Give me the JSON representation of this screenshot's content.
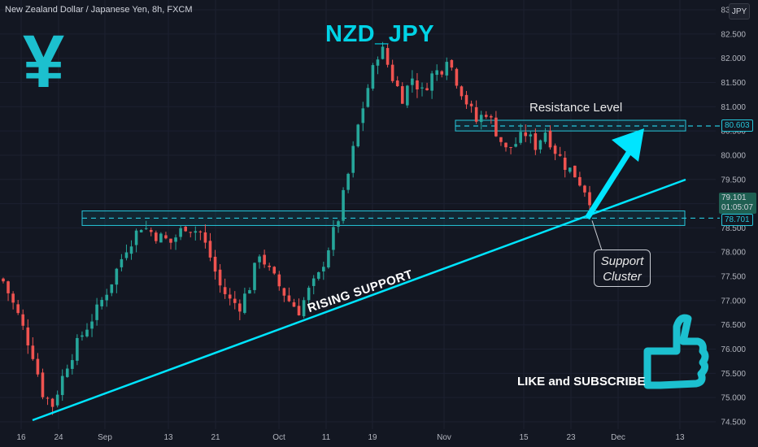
{
  "header": {
    "symbol_title": "New Zealand Dollar / Japanese Yen, 8h, FXCM",
    "currency_badge": "JPY"
  },
  "overlay": {
    "main_title": "NZD_JPY",
    "yen_glyph": "¥",
    "resistance_label": "Resistance Level",
    "support_label_line1": "Support",
    "support_label_line2": "Cluster",
    "rising_support_label": "RISING SUPPORT",
    "like_label": "LIKE and SUBSCRIBE"
  },
  "price_labels": {
    "resistance_value": "80.603",
    "last_price": "79.101",
    "countdown": "01:05:07",
    "support_value": "78.701"
  },
  "colors": {
    "background": "#131722",
    "bull": "#26a69a",
    "bear": "#ef5350",
    "accent": "#00e5ff",
    "grid": "#1e222d"
  },
  "icons": [
    "yen-symbol-icon",
    "thumbs-up-icon",
    "upward-arrow-icon"
  ],
  "chart_data": {
    "type": "candlestick",
    "title": "NZD_JPY",
    "timeframe": "8h",
    "x_tick_labels": [
      "16",
      "24",
      "Sep",
      "13",
      "21",
      "Oct",
      "11",
      "19",
      "Nov",
      "15",
      "23",
      "Dec",
      "13"
    ],
    "y_tick_labels": [
      "83.000",
      "82.500",
      "82.000",
      "81.500",
      "81.000",
      "80.500",
      "80.000",
      "79.500",
      "79.000",
      "78.500",
      "78.000",
      "77.500",
      "77.000",
      "76.500",
      "76.000",
      "75.500",
      "75.000",
      "74.500"
    ],
    "ylim": [
      74.45,
      83.05
    ],
    "close_path": [
      [
        0,
        77.4
      ],
      [
        3,
        76.7
      ],
      [
        6,
        75.9
      ],
      [
        8,
        75.1
      ],
      [
        10,
        74.85
      ],
      [
        13,
        75.7
      ],
      [
        16,
        76.3
      ],
      [
        19,
        76.8
      ],
      [
        22,
        77.4
      ],
      [
        25,
        78.1
      ],
      [
        28,
        78.55
      ],
      [
        31,
        78.35
      ],
      [
        34,
        78.2
      ],
      [
        37,
        78.55
      ],
      [
        40,
        78.4
      ],
      [
        42,
        77.9
      ],
      [
        44,
        77.3
      ],
      [
        46,
        77.0
      ],
      [
        48,
        76.9
      ],
      [
        50,
        77.3
      ],
      [
        52,
        78.0
      ],
      [
        54,
        77.6
      ],
      [
        56,
        77.3
      ],
      [
        58,
        77.0
      ],
      [
        60,
        76.8
      ],
      [
        62,
        77.2
      ],
      [
        64,
        77.5
      ],
      [
        66,
        78.1
      ],
      [
        68,
        78.7
      ],
      [
        70,
        79.6
      ],
      [
        72,
        80.6
      ],
      [
        74,
        81.4
      ],
      [
        76,
        82.1
      ],
      [
        77,
        82.15
      ],
      [
        79,
        81.6
      ],
      [
        81,
        81.2
      ],
      [
        83,
        81.6
      ],
      [
        85,
        81.3
      ],
      [
        87,
        81.65
      ],
      [
        89,
        81.8
      ],
      [
        90,
        82.05
      ],
      [
        92,
        81.55
      ],
      [
        94,
        81.1
      ],
      [
        96,
        80.7
      ],
      [
        98,
        80.9
      ],
      [
        100,
        80.5
      ],
      [
        102,
        80.1
      ],
      [
        104,
        80.25
      ],
      [
        106,
        80.45
      ],
      [
        108,
        80.2
      ],
      [
        110,
        80.5
      ],
      [
        112,
        80.1
      ],
      [
        114,
        79.8
      ],
      [
        116,
        79.6
      ],
      [
        118,
        79.3
      ],
      [
        119,
        79.1
      ]
    ],
    "annotations": {
      "resistance_zone": [
        80.5,
        80.72
      ],
      "resistance_level": 80.603,
      "support_zone": [
        78.55,
        78.85
      ],
      "support_level": 78.701,
      "last_price": 79.101,
      "rising_support_label": "RISING SUPPORT",
      "resistance_label": "Resistance Level",
      "support_label": "Support Cluster"
    }
  }
}
